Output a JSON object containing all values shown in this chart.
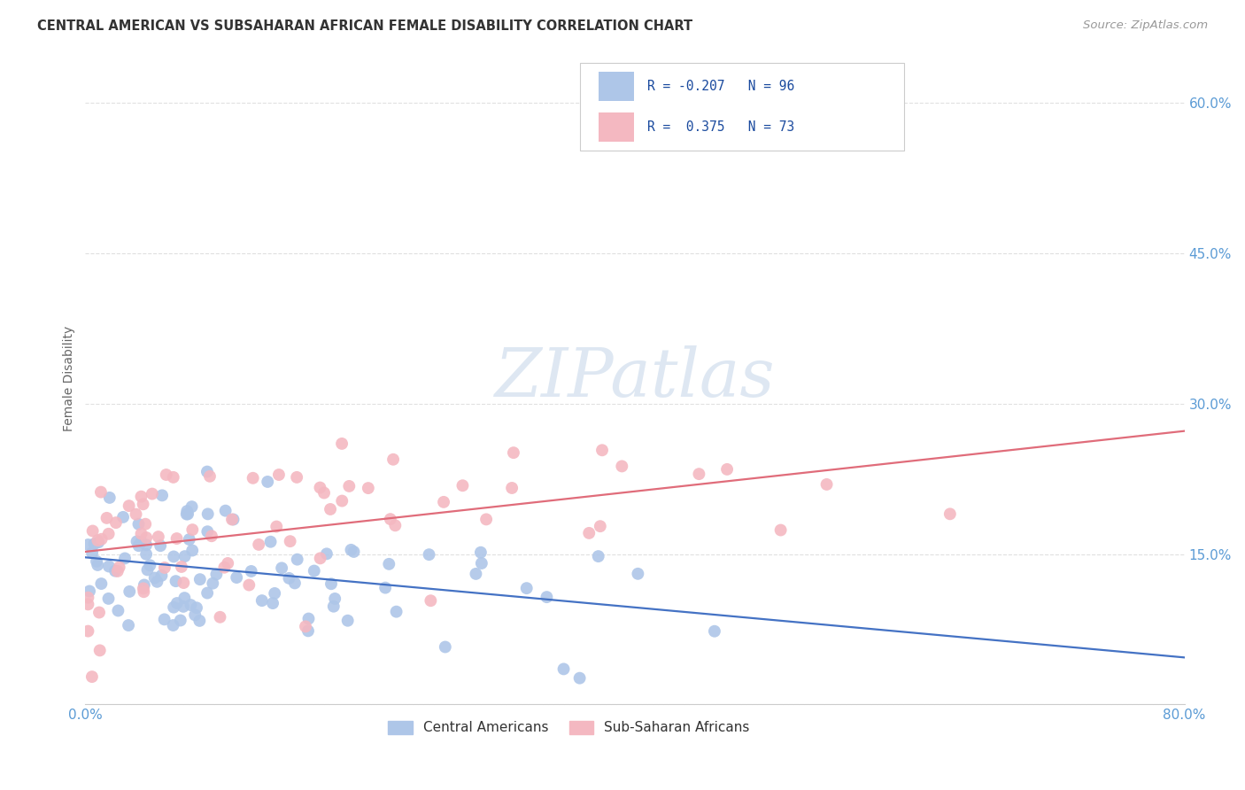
{
  "title": "CENTRAL AMERICAN VS SUBSAHARAN AFRICAN FEMALE DISABILITY CORRELATION CHART",
  "source": "Source: ZipAtlas.com",
  "ylabel": "Female Disability",
  "blue_color": "#aec6e8",
  "pink_color": "#f4b8c1",
  "blue_line_color": "#4472c4",
  "pink_line_color": "#e06c7a",
  "title_color": "#333333",
  "source_color": "#999999",
  "axis_label_color": "#5b9bd5",
  "grid_color": "#e0e0e0",
  "xlim": [
    0.0,
    0.8
  ],
  "ylim": [
    0.0,
    0.65
  ],
  "xticks": [
    0.0,
    0.2,
    0.4,
    0.6,
    0.8
  ],
  "xtick_labels": [
    "0.0%",
    "",
    "",
    "",
    "80.0%"
  ],
  "yticks": [
    0.0,
    0.15,
    0.3,
    0.45,
    0.6
  ],
  "ytick_labels": [
    "",
    "15.0%",
    "30.0%",
    "45.0%",
    "60.0%"
  ],
  "R_blue": -0.207,
  "N_blue": 96,
  "R_pink": 0.375,
  "N_pink": 73,
  "watermark_text": "ZIPatlas",
  "watermark_color": "#c8d8ea",
  "legend_label_blue": "R = -0.207   N = 96",
  "legend_label_pink": "R =  0.375   N = 73",
  "bottom_legend_blue": "Central Americans",
  "bottom_legend_pink": "Sub-Saharan Africans"
}
